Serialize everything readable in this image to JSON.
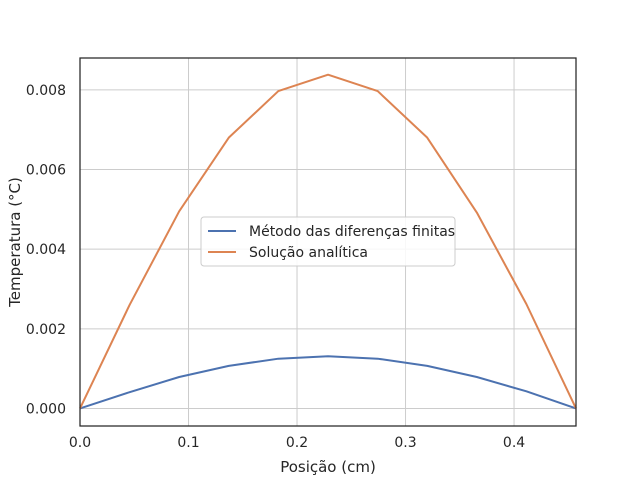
{
  "chart_data": {
    "type": "line",
    "xlabel": "Posição (cm)",
    "ylabel": "Temperatura (°C)",
    "xlim": [
      0.0,
      0.4571
    ],
    "ylim": [
      -0.00044,
      0.0088
    ],
    "xticks": [
      0.0,
      0.1,
      0.2,
      0.3,
      0.4
    ],
    "xtick_labels": [
      "0.0",
      "0.1",
      "0.2",
      "0.3",
      "0.4"
    ],
    "yticks": [
      0.0,
      0.002,
      0.004,
      0.006,
      0.008
    ],
    "ytick_labels": [
      "0.000",
      "0.002",
      "0.004",
      "0.006",
      "0.008"
    ],
    "grid": true,
    "legend_position": "center",
    "series": [
      {
        "name": "Método das diferenças finitas",
        "color": "#4c72b0",
        "x": [
          0.0,
          0.0457,
          0.0914,
          0.1371,
          0.1828,
          0.2286,
          0.2743,
          0.32,
          0.3657,
          0.4114,
          0.4571
        ],
        "y": [
          0.0,
          0.00041,
          0.00079,
          0.00107,
          0.00125,
          0.00131,
          0.00125,
          0.00107,
          0.00079,
          0.00043,
          0.0
        ]
      },
      {
        "name": "Solução analítica",
        "color": "#dd8452",
        "x": [
          0.0,
          0.0457,
          0.0914,
          0.1371,
          0.1828,
          0.2286,
          0.2743,
          0.32,
          0.3657,
          0.4114,
          0.4571
        ],
        "y": [
          0.0,
          0.0026,
          0.00495,
          0.0068,
          0.00797,
          0.00838,
          0.00797,
          0.0068,
          0.00492,
          0.00262,
          0.0
        ]
      }
    ]
  }
}
